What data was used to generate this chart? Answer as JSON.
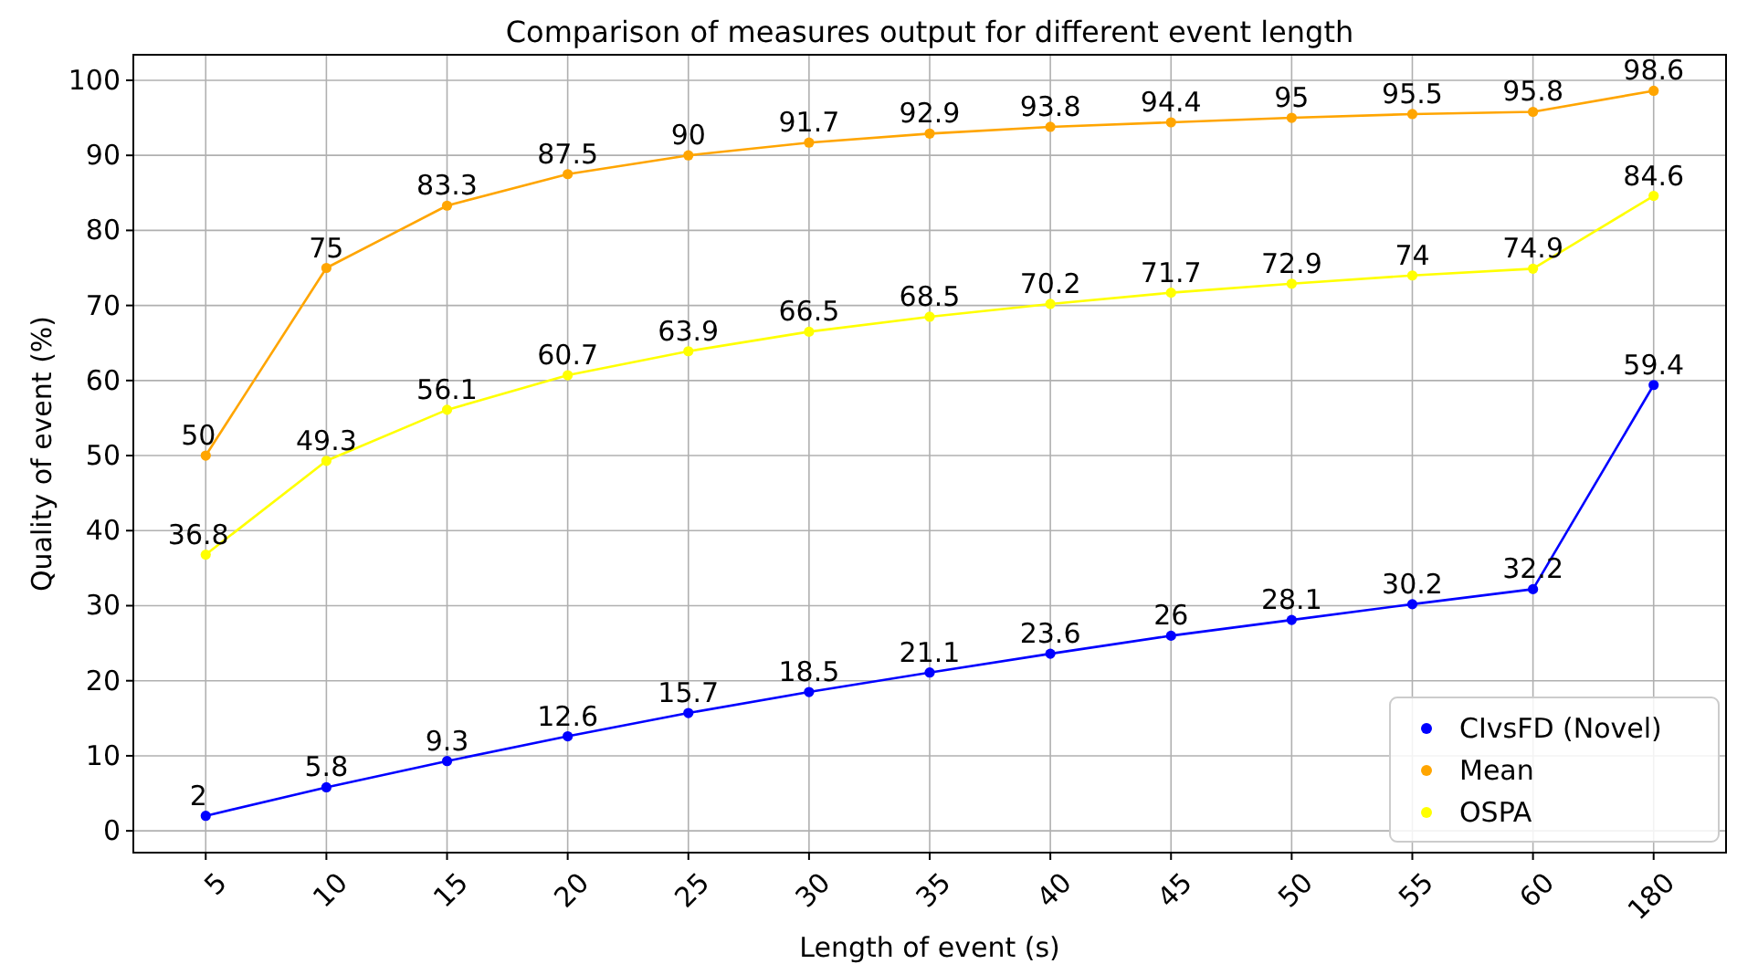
{
  "chart_data": {
    "type": "line",
    "title": "Comparison of measures output for different event length",
    "xlabel": "Length of event (s)",
    "ylabel": "Quality of event (%)",
    "categories": [
      "5",
      "10",
      "15",
      "20",
      "25",
      "30",
      "35",
      "40",
      "45",
      "50",
      "55",
      "60",
      "180"
    ],
    "series": [
      {
        "name": "CIvsFD (Novel)",
        "color": "#0000ff",
        "values": [
          2,
          5.8,
          9.3,
          12.6,
          15.7,
          18.5,
          21.1,
          23.6,
          26,
          28.1,
          30.2,
          32.2,
          59.4
        ]
      },
      {
        "name": "Mean",
        "color": "#ffa500",
        "values": [
          50,
          75,
          83.3,
          87.5,
          90,
          91.7,
          92.9,
          93.8,
          94.4,
          95,
          95.5,
          95.8,
          98.6
        ]
      },
      {
        "name": "OSPA",
        "color": "#ffff00",
        "values": [
          36.8,
          49.3,
          56.1,
          60.7,
          63.9,
          66.5,
          68.5,
          70.2,
          71.7,
          72.9,
          74,
          74.9,
          84.6
        ]
      }
    ],
    "ylim": [
      -2.9,
      103.4
    ],
    "yticks": [
      0,
      10,
      20,
      30,
      40,
      50,
      60,
      70,
      80,
      90,
      100
    ],
    "grid": true,
    "legend": "bottom right",
    "marker": "circle",
    "line_style": "solid",
    "data_labels": true
  }
}
